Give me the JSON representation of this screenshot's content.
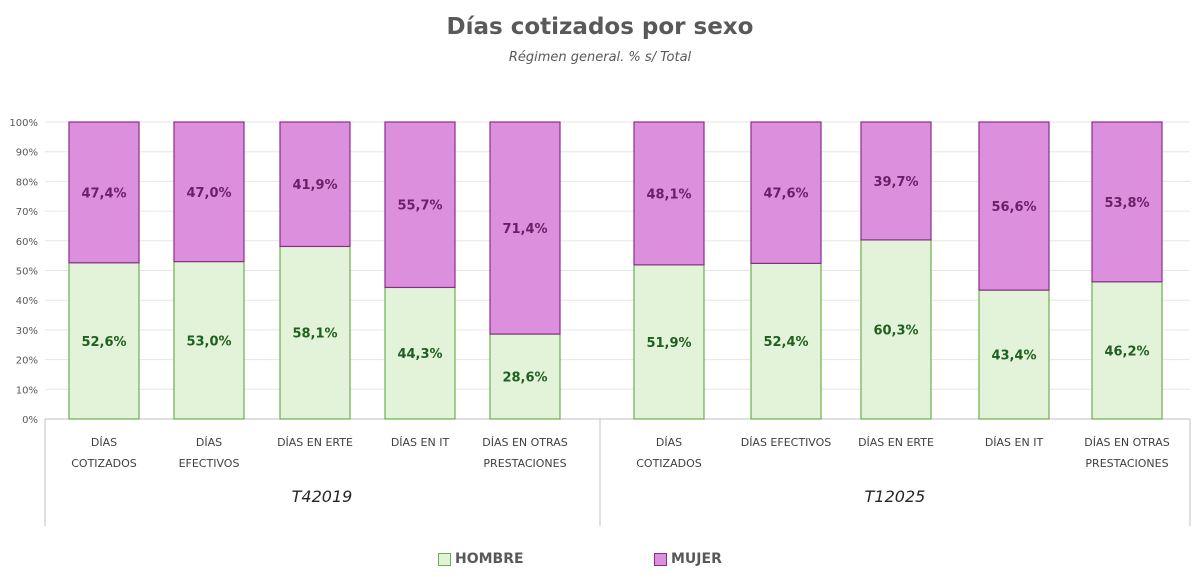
{
  "title": "Días cotizados por sexo",
  "subtitle": "Régimen general. % s/ Total",
  "colors": {
    "hombre_fill": "#e2f3d9",
    "hombre_border": "#6ab04c",
    "mujer_fill": "#dc8fdc",
    "mujer_border": "#8a2d8a",
    "hombre_text": "#1f5f1f",
    "mujer_text": "#6b1f6b",
    "axis": "#bfbfbf",
    "text": "#595959"
  },
  "legend": {
    "hombre": "HOMBRE",
    "mujer": "MUJER"
  },
  "chart_data": {
    "type": "bar",
    "stacked": true,
    "ylim": [
      0,
      100
    ],
    "ytick_labels": [
      "0%",
      "10%",
      "20%",
      "30%",
      "40%",
      "50%",
      "60%",
      "70%",
      "80%",
      "90%",
      "100%"
    ],
    "groups": [
      {
        "label": "T42019",
        "categories": [
          [
            "DÍAS",
            "COTIZADOS"
          ],
          [
            "DÍAS",
            "EFECTIVOS"
          ],
          [
            "DÍAS EN ERTE"
          ],
          [
            "DÍAS EN IT"
          ],
          [
            "DÍAS EN OTRAS",
            "PRESTACIONES"
          ]
        ],
        "hombre": [
          52.6,
          53.0,
          58.1,
          44.3,
          28.6
        ],
        "mujer": [
          47.4,
          47.0,
          41.9,
          55.7,
          71.4
        ],
        "hombre_labels": [
          "52,6%",
          "53,0%",
          "58,1%",
          "44,3%",
          "28,6%"
        ],
        "mujer_labels": [
          "47,4%",
          "47,0%",
          "41,9%",
          "55,7%",
          "71,4%"
        ]
      },
      {
        "label": "T12025",
        "categories": [
          [
            "DÍAS",
            "COTIZADOS"
          ],
          [
            "DÍAS EFECTIVOS"
          ],
          [
            "DÍAS EN ERTE"
          ],
          [
            "DÍAS EN IT"
          ],
          [
            "DÍAS EN OTRAS",
            "PRESTACIONES"
          ]
        ],
        "hombre": [
          51.9,
          52.4,
          60.3,
          43.4,
          46.2
        ],
        "mujer": [
          48.1,
          47.6,
          39.7,
          56.6,
          53.8
        ],
        "hombre_labels": [
          "51,9%",
          "52,4%",
          "60,3%",
          "43,4%",
          "46,2%"
        ],
        "mujer_labels": [
          "48,1%",
          "47,6%",
          "39,7%",
          "56,6%",
          "53,8%"
        ]
      }
    ],
    "series": [
      {
        "name": "HOMBRE",
        "key": "hombre"
      },
      {
        "name": "MUJER",
        "key": "mujer"
      }
    ]
  }
}
